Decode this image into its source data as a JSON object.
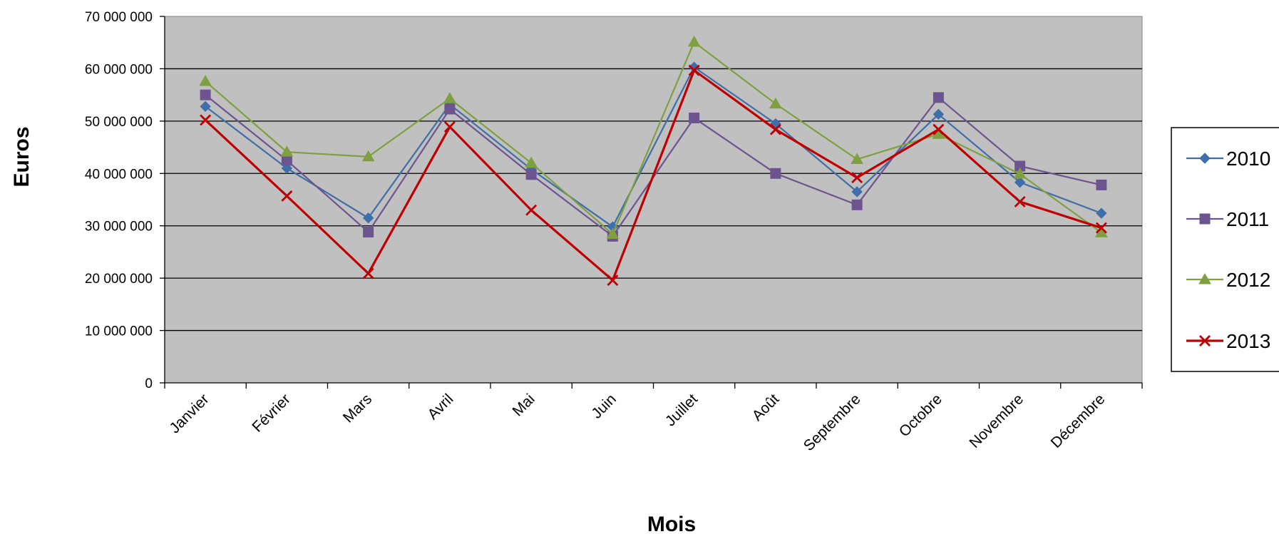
{
  "chart_data": {
    "type": "line",
    "title": "",
    "xlabel": "Mois",
    "ylabel": "Euros",
    "ylim": [
      0,
      70000000
    ],
    "ytick_step": 10000000,
    "ytick_labels": [
      "0",
      "10 000 000",
      "20 000 000",
      "30 000 000",
      "40 000 000",
      "50 000 000",
      "60 000 000",
      "70 000 000"
    ],
    "grid": true,
    "legend": "right",
    "plot_background": "#c0c0c0",
    "categories": [
      "Janvier",
      "Février",
      "Mars",
      "Avril",
      "Mai",
      "Juin",
      "Juillet",
      "Août",
      "Septembre",
      "Octobre",
      "Novembre",
      "Décembre"
    ],
    "series": [
      {
        "name": "2010",
        "color": "#3f6ea8",
        "marker": "diamond",
        "values": [
          52800000,
          41000000,
          31500000,
          53200000,
          40800000,
          29800000,
          60300000,
          49500000,
          36500000,
          51300000,
          38300000,
          32400000
        ]
      },
      {
        "name": "2011",
        "color": "#6c558e",
        "marker": "square",
        "values": [
          55000000,
          42500000,
          28800000,
          52300000,
          39800000,
          28000000,
          50600000,
          40000000,
          34000000,
          54500000,
          41400000,
          37800000
        ]
      },
      {
        "name": "2012",
        "color": "#7f9f40",
        "marker": "triangle",
        "values": [
          57600000,
          44100000,
          43200000,
          54300000,
          42000000,
          28400000,
          65100000,
          53300000,
          42700000,
          47500000,
          39900000,
          28700000
        ]
      },
      {
        "name": "2013",
        "color": "#c00000",
        "marker": "x",
        "values": [
          50200000,
          35700000,
          20900000,
          48900000,
          33000000,
          19600000,
          59700000,
          48400000,
          39200000,
          48400000,
          34600000,
          29600000
        ]
      }
    ]
  }
}
